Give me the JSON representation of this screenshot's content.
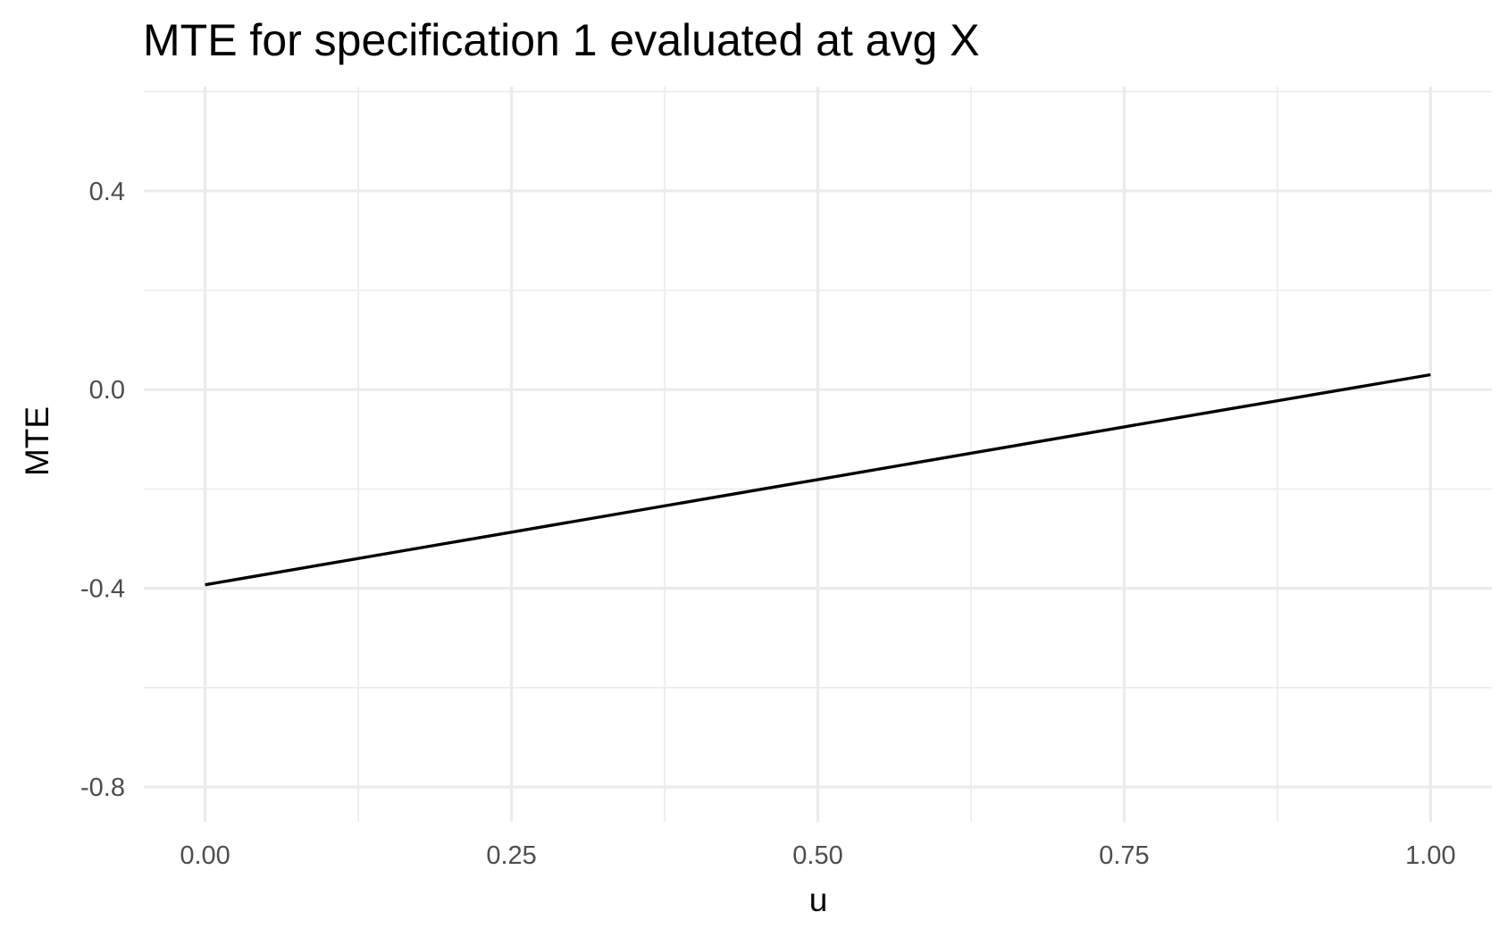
{
  "chart_data": {
    "type": "line",
    "title": "MTE for specification 1 evaluated at avg X",
    "xlabel": "u",
    "ylabel": "MTE",
    "xlim": [
      -0.05,
      1.05
    ],
    "ylim": [
      -0.87,
      0.61
    ],
    "x_ticks": [
      0,
      0.25,
      0.5,
      0.75,
      1
    ],
    "x_tick_labels": [
      "0.00",
      "0.25",
      "0.50",
      "0.75",
      "1.00"
    ],
    "x_minor_ticks": [
      0.125,
      0.375,
      0.625,
      0.875
    ],
    "y_ticks": [
      -0.8,
      -0.4,
      0.0,
      0.4
    ],
    "y_tick_labels": [
      "-0.8",
      "-0.4",
      "0.0",
      "0.4"
    ],
    "y_minor_ticks": [
      -0.6,
      -0.2,
      0.2,
      0.6
    ],
    "grid": true,
    "series": [
      {
        "color": "#000000",
        "x": [
          0,
          0.25,
          0.5,
          0.75,
          1
        ],
        "y": [
          -0.393,
          -0.287,
          -0.181,
          -0.075,
          0.03
        ]
      }
    ],
    "colors": {
      "grid": "#ebebeb",
      "background": "#ffffff",
      "tick_text": "#4d4d4d",
      "line": "#000000"
    }
  }
}
